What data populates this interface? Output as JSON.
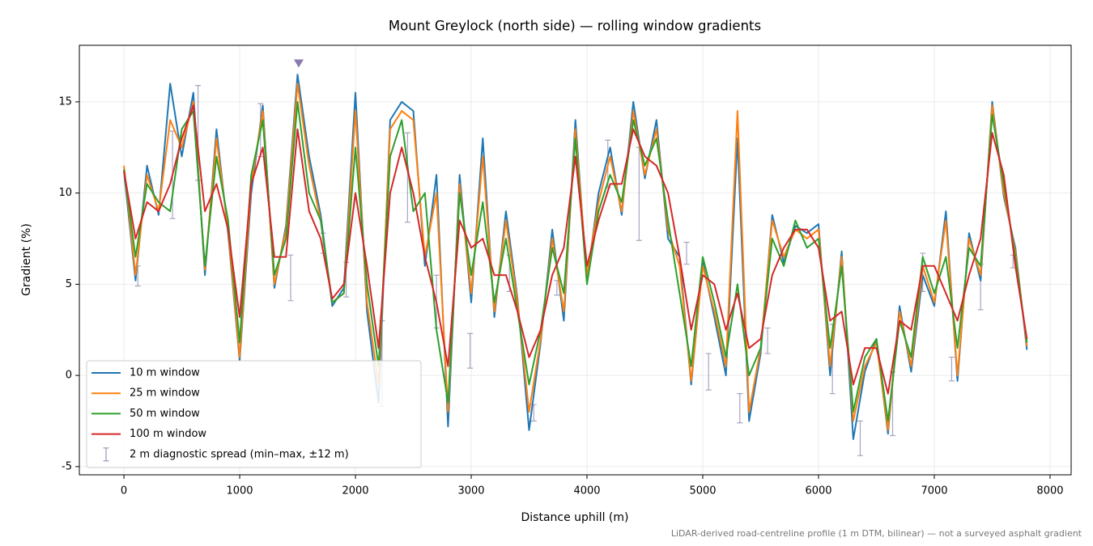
{
  "chart_data": {
    "type": "line",
    "title": "Mount Greylock (north side) — rolling window gradients",
    "xlabel": "Distance uphill (m)",
    "ylabel": "Gradient (%)",
    "footnote": "LiDAR-derived road-centreline profile (1 m DTM, bilinear) — not a surveyed asphalt gradient",
    "xlim": [
      -385,
      8182
    ],
    "ylim": [
      -5.45,
      18.1
    ],
    "xticks": [
      0,
      1000,
      2000,
      3000,
      4000,
      5000,
      6000,
      7000,
      8000
    ],
    "yticks": [
      -5,
      0,
      5,
      10,
      15
    ],
    "grid": true,
    "legend": "lower left",
    "x": [
      0,
      100,
      200,
      300,
      400,
      500,
      600,
      700,
      800,
      900,
      1000,
      1100,
      1200,
      1300,
      1400,
      1500,
      1600,
      1700,
      1800,
      1900,
      2000,
      2100,
      2200,
      2300,
      2400,
      2500,
      2600,
      2700,
      2800,
      2900,
      3000,
      3100,
      3200,
      3300,
      3400,
      3500,
      3600,
      3700,
      3800,
      3900,
      4000,
      4100,
      4200,
      4300,
      4400,
      4500,
      4600,
      4700,
      4800,
      4900,
      5000,
      5100,
      5200,
      5300,
      5400,
      5500,
      5600,
      5700,
      5800,
      5900,
      6000,
      6100,
      6200,
      6300,
      6400,
      6500,
      6600,
      6700,
      6800,
      6900,
      7000,
      7100,
      7200,
      7300,
      7400,
      7500,
      7600,
      7700,
      7800
    ],
    "series": [
      {
        "name": "10 m window",
        "color": "#1f77b4",
        "values": [
          11.2,
          5.2,
          11.5,
          8.8,
          16.0,
          12.0,
          15.5,
          5.5,
          13.5,
          7.8,
          0.8,
          10.0,
          14.8,
          4.8,
          8.2,
          16.5,
          12.0,
          8.8,
          3.8,
          4.8,
          15.5,
          3.5,
          -1.5,
          14.0,
          15.0,
          14.5,
          6.0,
          11.0,
          -2.8,
          11.0,
          4.0,
          13.0,
          3.2,
          9.0,
          4.2,
          -3.0,
          1.8,
          8.0,
          3.0,
          14.0,
          5.2,
          10.0,
          12.5,
          8.8,
          15.0,
          10.8,
          14.0,
          7.5,
          6.5,
          -0.5,
          6.2,
          3.2,
          0.0,
          13.0,
          -2.5,
          1.2,
          8.8,
          6.2,
          8.2,
          7.8,
          8.3,
          0.0,
          6.8,
          -3.5,
          0.2,
          2.0,
          -3.2,
          3.8,
          0.2,
          5.5,
          3.8,
          9.0,
          -0.3,
          7.8,
          5.2,
          15.0,
          9.8,
          7.0,
          1.4
        ]
      },
      {
        "name": "25 m window",
        "color": "#ff7f0e",
        "values": [
          11.5,
          5.5,
          11.0,
          9.0,
          14.0,
          12.5,
          15.0,
          5.8,
          13.0,
          8.0,
          1.0,
          10.5,
          14.5,
          5.0,
          8.0,
          16.0,
          11.5,
          8.5,
          4.0,
          4.5,
          14.5,
          4.0,
          -0.5,
          13.5,
          14.5,
          14.0,
          6.5,
          10.0,
          -2.0,
          10.5,
          4.5,
          12.0,
          3.5,
          8.5,
          4.0,
          -2.0,
          2.0,
          7.5,
          3.5,
          13.5,
          5.5,
          9.5,
          12.0,
          9.0,
          14.5,
          11.0,
          13.5,
          8.0,
          6.0,
          -0.3,
          6.0,
          3.5,
          0.5,
          14.5,
          -2.0,
          1.5,
          8.5,
          6.5,
          8.0,
          7.5,
          8.0,
          0.5,
          6.5,
          -2.5,
          0.5,
          1.8,
          -3.0,
          3.5,
          0.5,
          6.0,
          4.0,
          8.5,
          0.0,
          7.5,
          5.5,
          14.8,
          10.0,
          6.8,
          1.6
        ]
      },
      {
        "name": "50 m window",
        "color": "#2ca02c",
        "values": [
          11.3,
          6.5,
          10.5,
          9.5,
          9.0,
          13.5,
          14.5,
          6.0,
          12.0,
          8.5,
          1.8,
          11.0,
          14.0,
          5.5,
          7.5,
          15.0,
          10.0,
          8.5,
          4.0,
          4.5,
          12.5,
          5.0,
          0.5,
          12.0,
          14.0,
          9.0,
          10.0,
          2.5,
          -1.5,
          10.0,
          5.5,
          9.5,
          4.0,
          7.5,
          3.5,
          -0.5,
          2.5,
          7.0,
          4.5,
          13.0,
          5.0,
          9.0,
          11.0,
          9.5,
          14.0,
          11.5,
          13.0,
          8.5,
          4.5,
          0.5,
          6.5,
          4.0,
          1.0,
          5.0,
          0.0,
          1.5,
          7.5,
          6.0,
          8.5,
          7.0,
          7.5,
          1.5,
          6.0,
          -2.0,
          1.0,
          2.0,
          -2.5,
          3.0,
          1.0,
          6.5,
          4.5,
          6.5,
          1.5,
          7.0,
          6.0,
          14.3,
          10.5,
          6.5,
          1.8
        ]
      },
      {
        "name": "100 m window",
        "color": "#d62728",
        "values": [
          11.2,
          7.5,
          9.5,
          9.0,
          10.5,
          13.0,
          14.8,
          9.0,
          10.5,
          8.0,
          3.2,
          10.5,
          12.5,
          6.5,
          6.5,
          13.5,
          9.0,
          7.5,
          4.2,
          5.0,
          10.0,
          6.0,
          1.5,
          10.0,
          12.5,
          10.0,
          6.5,
          4.0,
          0.5,
          8.5,
          7.0,
          7.5,
          5.5,
          5.5,
          3.5,
          1.0,
          2.5,
          5.5,
          7.0,
          12.0,
          6.0,
          8.5,
          10.5,
          10.5,
          13.5,
          12.0,
          11.5,
          10.0,
          6.5,
          2.5,
          5.5,
          5.0,
          2.5,
          4.5,
          1.5,
          2.0,
          5.5,
          7.0,
          8.0,
          8.0,
          7.0,
          3.0,
          3.5,
          -0.5,
          1.5,
          1.5,
          -1.0,
          3.0,
          2.5,
          6.0,
          6.0,
          4.5,
          3.0,
          5.5,
          7.5,
          13.3,
          11.0,
          6.0,
          2.0
        ]
      }
    ],
    "diagnostic": {
      "name": "2 m diagnostic spread (min–max, ±12 m)",
      "color": "#9a94b8",
      "x": [
        120,
        420,
        640,
        1180,
        1440,
        1720,
        1920,
        2230,
        2450,
        2700,
        2990,
        3330,
        3540,
        3740,
        4180,
        4450,
        4860,
        5050,
        5320,
        5560,
        6120,
        6360,
        6640,
        6900,
        7150,
        7400,
        7680
      ],
      "low": [
        4.9,
        8.6,
        10.7,
        12.0,
        4.1,
        6.7,
        4.3,
        -1.7,
        8.4,
        2.6,
        0.4,
        4.6,
        -2.5,
        4.4,
        10.3,
        7.4,
        6.1,
        -0.8,
        -2.6,
        1.2,
        -1.0,
        -4.4,
        -3.3,
        4.6,
        -0.3,
        3.6,
        5.9
      ],
      "high": [
        6.0,
        13.4,
        15.9,
        14.9,
        6.6,
        7.8,
        6.2,
        3.0,
        13.3,
        5.5,
        2.3,
        6.6,
        -1.6,
        5.2,
        12.9,
        12.5,
        7.3,
        1.2,
        -1.0,
        2.6,
        2.8,
        -2.5,
        0.2,
        6.7,
        1.0,
        6.1,
        6.6
      ]
    },
    "peak_marker": {
      "x": 1510,
      "y": 17.1,
      "color": "#8c7bb0"
    }
  }
}
